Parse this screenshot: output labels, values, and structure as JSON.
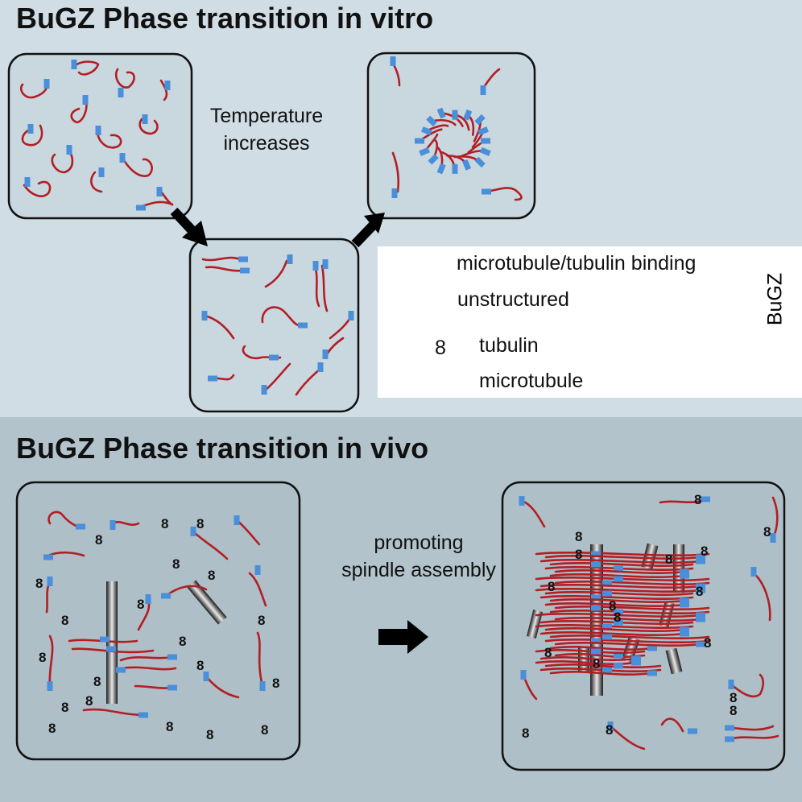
{
  "top_panel": {
    "title": "BuGZ Phase transition in vitro",
    "condition_label": "Temperature\nincreases"
  },
  "legend": {
    "binding_label": "microtubule/tubulin binding",
    "unstructured_label": "unstructured",
    "tubulin_label": "tubulin",
    "microtubule_label": "microtubule",
    "group_label": "BuGZ",
    "tubulin_glyph": "8"
  },
  "bottom_panel": {
    "title": "BuGZ Phase transition in vivo",
    "condition_label": "promoting\nspindle assembly"
  },
  "colors": {
    "top_background": "#d0dde5",
    "bottom_background": "#b2c3cb",
    "box_fill": "#c9d7df",
    "box_fill_bottom": "#aebfc7",
    "strand": "#b21e24",
    "binding_domain": "#4a8fd9",
    "arrow": "#000000"
  }
}
